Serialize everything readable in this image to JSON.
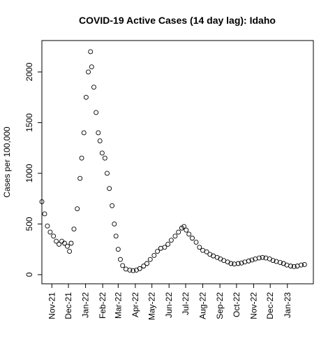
{
  "chart_data": {
    "type": "scatter",
    "title": "COVID-19 Active Cases (14 day lag): Idaho",
    "y_label": "Cases per 100,000",
    "x": [
      13,
      18,
      23,
      28,
      34,
      39,
      44,
      49,
      54,
      59,
      63,
      66,
      71,
      77,
      82,
      85,
      89,
      93,
      97,
      101,
      103,
      107,
      111,
      115,
      118,
      122,
      127,
      131,
      135,
      140,
      144,
      147,
      151,
      155,
      159,
      165,
      172,
      178,
      184,
      190,
      197,
      203,
      209,
      216,
      222,
      228,
      235,
      241,
      247,
      254,
      260,
      266,
      270,
      274,
      279,
      285,
      292,
      298,
      304,
      311,
      317,
      323,
      330,
      336,
      342,
      349,
      355,
      361,
      368,
      374,
      380,
      387,
      393,
      399,
      406,
      412,
      418,
      425,
      431,
      437,
      444,
      450,
      456,
      463,
      469,
      475,
      482,
      488
    ],
    "values": [
      720,
      600,
      480,
      420,
      380,
      330,
      300,
      330,
      310,
      280,
      230,
      310,
      450,
      650,
      950,
      1150,
      1400,
      1750,
      2000,
      2200,
      2050,
      1850,
      1600,
      1400,
      1320,
      1200,
      1150,
      1000,
      850,
      680,
      500,
      380,
      250,
      150,
      90,
      55,
      45,
      40,
      45,
      60,
      85,
      110,
      150,
      190,
      230,
      260,
      270,
      300,
      340,
      380,
      420,
      460,
      475,
      440,
      400,
      360,
      320,
      270,
      240,
      225,
      200,
      185,
      170,
      155,
      140,
      125,
      110,
      105,
      110,
      115,
      125,
      135,
      145,
      155,
      165,
      170,
      165,
      155,
      140,
      130,
      120,
      110,
      95,
      85,
      80,
      85,
      95,
      100
    ],
    "color": "#000000",
    "xlim": [
      13,
      504
    ],
    "xticks": [
      {
        "value": 31,
        "label": "Nov-21"
      },
      {
        "value": 61,
        "label": "Dec-21"
      },
      {
        "value": 92,
        "label": "Jan-22"
      },
      {
        "value": 123,
        "label": "Feb-22"
      },
      {
        "value": 151,
        "label": "Mar-22"
      },
      {
        "value": 182,
        "label": "Apr-22"
      },
      {
        "value": 212,
        "label": "May-22"
      },
      {
        "value": 243,
        "label": "Jun-22"
      },
      {
        "value": 273,
        "label": "Jul-22"
      },
      {
        "value": 304,
        "label": "Aug-22"
      },
      {
        "value": 335,
        "label": "Sep-22"
      },
      {
        "value": 365,
        "label": "Oct-22"
      },
      {
        "value": 396,
        "label": "Nov-22"
      },
      {
        "value": 426,
        "label": "Dec-22"
      },
      {
        "value": 457,
        "label": "Jan-23"
      }
    ],
    "ylim": [
      -90,
      2310
    ],
    "yticks": [
      0,
      500,
      1000,
      1500,
      2000
    ]
  }
}
